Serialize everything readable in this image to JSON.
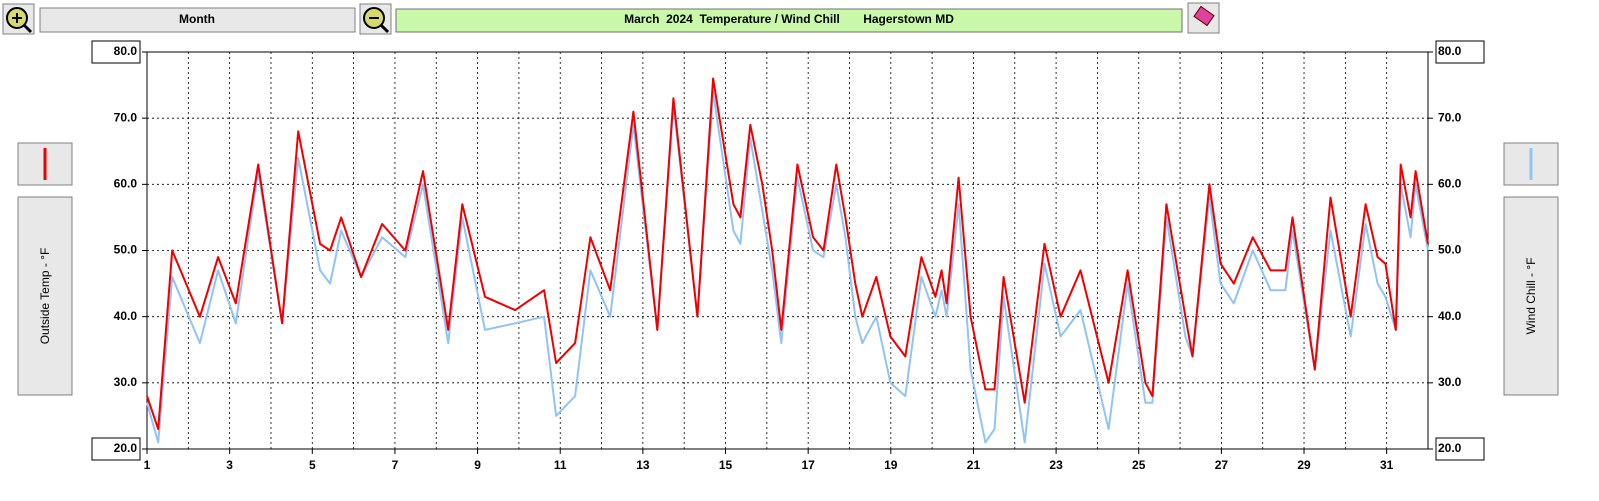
{
  "ui": {
    "period": "Month"
  },
  "chart_data": {
    "type": "line",
    "title": "March  2024  Temperature / Wind Chill       Hagerstown MD",
    "ylabel": "Outside Temp - °F",
    "y2label": "Wind Chill - °F",
    "x": [
      1.0,
      1.27,
      1.61,
      2.28,
      2.72,
      3.15,
      3.69,
      4.27,
      4.66,
      5.19,
      5.43,
      5.7,
      6.18,
      6.69,
      7.25,
      7.68,
      8.29,
      8.63,
      9.18,
      9.91,
      10.61,
      10.9,
      11.36,
      11.73,
      12.21,
      12.77,
      13.35,
      13.74,
      14.32,
      14.7,
      15.19,
      15.36,
      15.6,
      15.89,
      16.13,
      16.35,
      16.74,
      17.12,
      17.37,
      17.68,
      17.9,
      18.14,
      18.31,
      18.65,
      18.99,
      19.35,
      19.74,
      20.08,
      20.23,
      20.35,
      20.64,
      20.93,
      21.29,
      21.51,
      21.73,
      22.24,
      22.72,
      23.11,
      23.59,
      24.27,
      24.73,
      25.16,
      25.33,
      25.67,
      26.13,
      26.3,
      26.71,
      26.98,
      27.3,
      27.76,
      28.19,
      28.55,
      28.72,
      29.26,
      29.64,
      30.13,
      30.49,
      30.78,
      30.97,
      31.22,
      31.34,
      31.58,
      31.7,
      32.0
    ],
    "series": [
      {
        "name": "Outside Temp",
        "color": "#ee0000",
        "axis": "y",
        "values": [
          28,
          23,
          50,
          40,
          49,
          42,
          63,
          39,
          68,
          51,
          50,
          55,
          46,
          54,
          50,
          62,
          38,
          57,
          43,
          41,
          44,
          33,
          36,
          52,
          44,
          71,
          38,
          73,
          40,
          76,
          57,
          55,
          69,
          60,
          50,
          38,
          63,
          52,
          50,
          63,
          55,
          45,
          40,
          46,
          37,
          34,
          49,
          43,
          47,
          42,
          61,
          40,
          29,
          29,
          46,
          27,
          51,
          40,
          47,
          30,
          47,
          30,
          28,
          57,
          40,
          34,
          60,
          48,
          45,
          52,
          47,
          47,
          55,
          32,
          58,
          40,
          57,
          49,
          48,
          38,
          63,
          55,
          62,
          51
        ]
      },
      {
        "name": "Wind Chill",
        "color": "#90c4f4",
        "axis": "y2",
        "values": [
          27,
          21,
          46,
          36,
          47,
          39,
          62,
          39,
          64,
          47,
          45,
          53,
          46,
          52,
          49,
          60,
          36,
          55,
          38,
          39,
          40,
          25,
          28,
          47,
          40,
          69,
          38,
          72,
          40,
          74,
          53,
          51,
          67,
          56,
          47,
          36,
          61,
          50,
          49,
          60,
          52,
          40,
          36,
          40,
          30,
          28,
          46,
          40,
          44,
          40,
          57,
          32,
          21,
          23,
          43,
          21,
          48,
          37,
          41,
          23,
          45,
          27,
          27,
          55,
          37,
          34,
          58,
          45,
          42,
          50,
          44,
          44,
          53,
          32,
          53,
          37,
          54,
          45,
          43,
          38,
          60,
          52,
          60,
          50
        ]
      }
    ],
    "xlim": [
      1,
      32
    ],
    "xticks": [
      1,
      3,
      5,
      7,
      9,
      11,
      13,
      15,
      17,
      19,
      21,
      23,
      25,
      27,
      29,
      31
    ],
    "xminor": 1,
    "ylim": [
      20,
      80
    ],
    "yticks": [
      {
        "value": 20,
        "label": "20.0"
      },
      {
        "value": 30,
        "label": "30.0"
      },
      {
        "value": 40,
        "label": "40.0"
      },
      {
        "value": 50,
        "label": "50.0"
      },
      {
        "value": 60,
        "label": "60.0"
      },
      {
        "value": 70,
        "label": "70.0"
      },
      {
        "value": 80,
        "label": "80.0"
      }
    ],
    "y2lim": [
      20,
      80
    ],
    "y2ticks": [
      {
        "value": 20,
        "label": "20.0"
      },
      {
        "value": 30,
        "label": "30.0"
      },
      {
        "value": 40,
        "label": "40.0"
      },
      {
        "value": 50,
        "label": "50.0"
      },
      {
        "value": 60,
        "label": "60.0"
      },
      {
        "value": 70,
        "label": "70.0"
      },
      {
        "value": 80,
        "label": "80.0"
      }
    ],
    "grid": true
  }
}
